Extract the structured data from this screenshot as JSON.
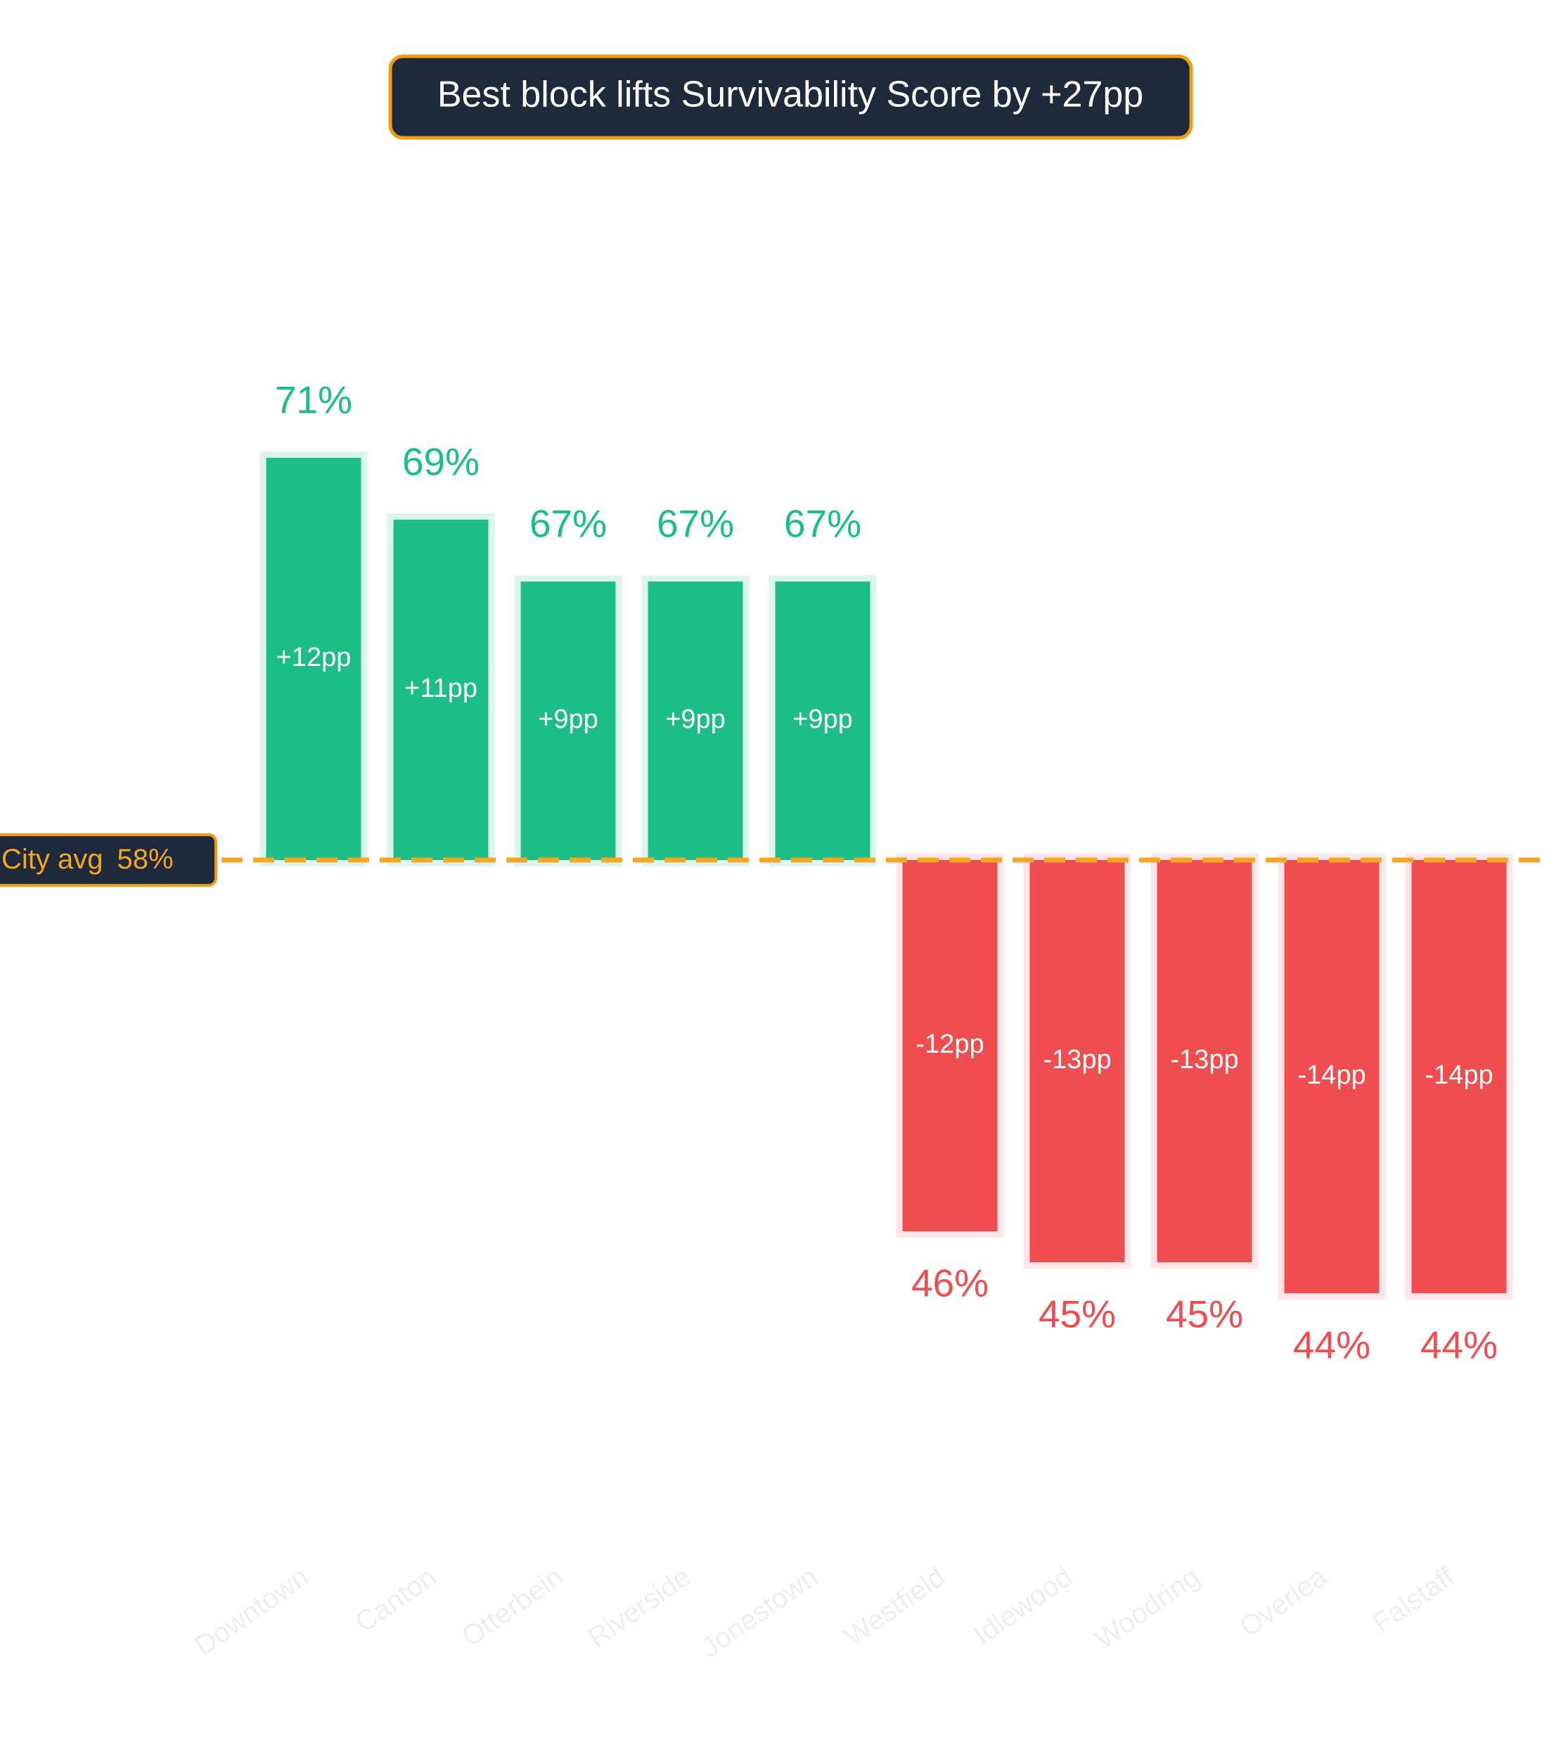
{
  "chart_data": {
    "type": "diverging-bar",
    "title": "Best block lifts Survivability Score by +27pp",
    "categories": [
      "Downtown",
      "Canton",
      "Otterbein",
      "Riverside",
      "Jonestown",
      "Westfield",
      "Idlewood",
      "Woodring",
      "Overlea",
      "Falstaff"
    ],
    "values": [
      71,
      69,
      67,
      67,
      67,
      46,
      45,
      45,
      44,
      44
    ],
    "value_labels": [
      "71%",
      "69%",
      "67%",
      "67%",
      "67%",
      "46%",
      "45%",
      "45%",
      "44%",
      "44%"
    ],
    "delta_labels": [
      "+12pp",
      "+11pp",
      "+9pp",
      "+9pp",
      "+9pp",
      "-12pp",
      "-13pp",
      "-13pp",
      "-14pp",
      "-14pp"
    ],
    "reference": {
      "label": "City avg",
      "value": 58,
      "value_label": "58%"
    },
    "color_above": "#1dbd87",
    "color_below": "#ef4d4f",
    "ylim": [
      40,
      80
    ]
  }
}
